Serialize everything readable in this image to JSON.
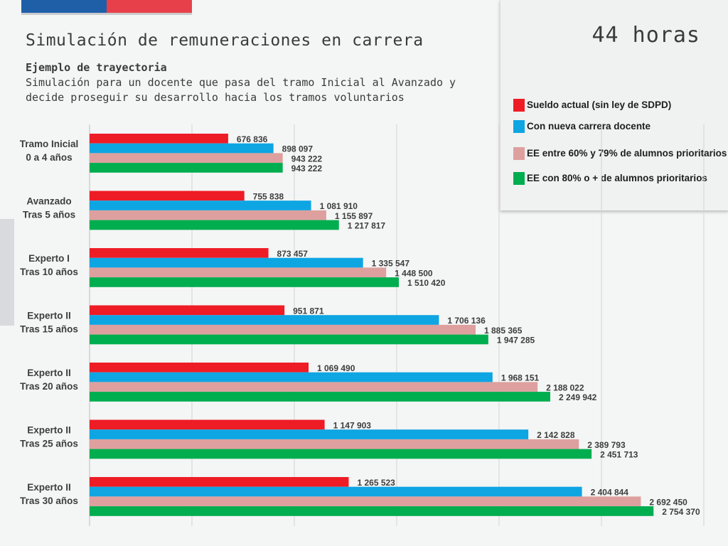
{
  "header": {
    "title": "Simulación de remuneraciones en carrera",
    "subtitle": "Ejemplo de trayectoria",
    "description": "Simulación para un docente que pasa del tramo Inicial al Avanzado y decide proseguir su desarrollo hacia los tramos voluntarios",
    "hours": "44 horas"
  },
  "colors": {
    "flag_blue": "#1f5fa8",
    "flag_red": "#e8404a",
    "background": "#f4f5f5"
  },
  "chart_data": {
    "type": "bar",
    "orientation": "horizontal",
    "categories": [
      [
        "Tramo Inicial",
        "0 a 4 años"
      ],
      [
        "Avanzado",
        "Tras 5 años"
      ],
      [
        "Experto I",
        "Tras 10 años"
      ],
      [
        "Experto II",
        "Tras 15 años"
      ],
      [
        "Experto II",
        "Tras 20 años"
      ],
      [
        "Experto II",
        "Tras 25 años"
      ],
      [
        "Experto II",
        "Tras 30 años"
      ]
    ],
    "series": [
      {
        "name": "Sueldo actual (sin ley de SDPD)",
        "color": "#ee1c25",
        "values": [
          676836,
          755838,
          873457,
          951871,
          1069490,
          1147903,
          1265523
        ],
        "labels": [
          "676 836",
          "755 838",
          "873 457",
          "951 871",
          "1 069 490",
          "1 147 903",
          "1 265 523"
        ]
      },
      {
        "name": "Con nueva carrera docente",
        "color": "#0ea5e3",
        "values": [
          898097,
          1081910,
          1335547,
          1706136,
          1968151,
          2142828,
          2404844
        ],
        "labels": [
          "898 097",
          "1 081 910",
          "1 335 547",
          "1 706 136",
          "1 968 151",
          "2 142 828",
          "2 404 844"
        ]
      },
      {
        "name": "EE entre 60% y  79% de alumnos prioritarios",
        "color": "#dda09e",
        "values": [
          943222,
          1155897,
          1448500,
          1885365,
          2188022,
          2389793,
          2692450
        ],
        "labels": [
          "943 222",
          "1 155 897",
          "1 448 500",
          "1 885 365",
          "2 188 022",
          "2 389 793",
          "2 692 450"
        ]
      },
      {
        "name": "EE con 80% o +  de alumnos prioritarios",
        "color": "#00ad4f",
        "values": [
          943222,
          1217817,
          1510420,
          1947285,
          2249942,
          2451713,
          2754370
        ],
        "labels": [
          "943 222",
          "1 217 817",
          "1 510 420",
          "1 947 285",
          "2 249 942",
          "2 451 713",
          "2 754 370"
        ]
      }
    ],
    "xlim": [
      0,
      3000000
    ],
    "grid": true,
    "legend_position": "top-right"
  }
}
